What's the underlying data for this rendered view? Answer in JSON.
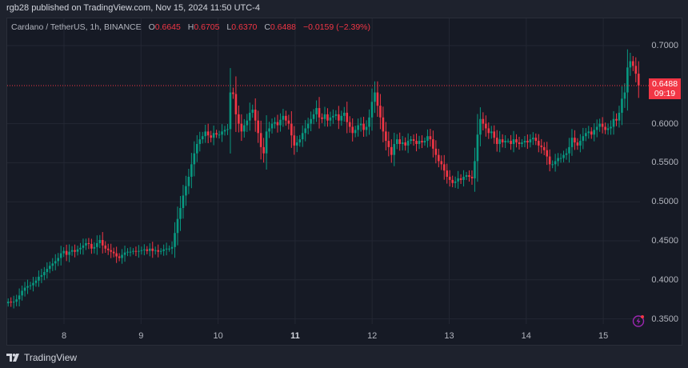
{
  "header": {
    "publisher": "rgb28 published on TradingView.com, Nov 15, 2024 11:50 UTC-4"
  },
  "legend": {
    "symbol": "Cardano / TetherUS, 1h, BINANCE",
    "open_label": "O",
    "open": "0.6645",
    "high_label": "H",
    "high": "0.6705",
    "low_label": "L",
    "low": "0.6370",
    "close_label": "C",
    "close": "0.6488",
    "change": "−0.0159 (−2.39%)"
  },
  "price_badge": {
    "price": "0.6488",
    "countdown": "09:19"
  },
  "footer": {
    "brand": "TradingView",
    "logo_icon": "tradingview-logo-icon"
  },
  "indicator_icon": "lightning-bolt-icon",
  "colors": {
    "up": "#089981",
    "down": "#f23645",
    "background": "#161a25",
    "frame": "#1e222d",
    "grid": "#232733",
    "accent_bolt": "#9c27b0"
  },
  "chart_data": {
    "type": "candlestick",
    "title": "Cardano / TetherUS, 1h, BINANCE",
    "xlabel": "",
    "ylabel": "",
    "x_ticks": [
      "8",
      "9",
      "10",
      "11",
      "12",
      "13",
      "14",
      "15"
    ],
    "bold_ticks": [
      "11"
    ],
    "y_ticks": [
      "0.7000",
      "0.6000",
      "0.5500",
      "0.5000",
      "0.4500",
      "0.4000",
      "0.3500"
    ],
    "ylim": [
      0.33,
      0.735
    ],
    "grid": true,
    "last_price": 0.6488,
    "interval": "1h",
    "date_range": "Nov 7 – Nov 15, 2024",
    "close_series_approx": [
      0.372,
      0.371,
      0.372,
      0.375,
      0.38,
      0.386,
      0.39,
      0.392,
      0.393,
      0.396,
      0.399,
      0.404,
      0.406,
      0.41,
      0.414,
      0.418,
      0.421,
      0.424,
      0.428,
      0.434,
      0.437,
      0.432,
      0.436,
      0.438,
      0.436,
      0.439,
      0.441,
      0.444,
      0.447,
      0.446,
      0.44,
      0.442,
      0.447,
      0.451,
      0.444,
      0.44,
      0.438,
      0.436,
      0.434,
      0.43,
      0.428,
      0.432,
      0.435,
      0.436,
      0.436,
      0.437,
      0.436,
      0.437,
      0.438,
      0.439,
      0.437,
      0.44,
      0.437,
      0.438,
      0.436,
      0.437,
      0.439,
      0.44,
      0.44,
      0.442,
      0.46,
      0.478,
      0.492,
      0.508,
      0.52,
      0.532,
      0.548,
      0.562,
      0.574,
      0.58,
      0.584,
      0.59,
      0.585,
      0.582,
      0.588,
      0.586,
      0.586,
      0.59,
      0.592,
      0.593,
      0.64,
      0.638,
      0.612,
      0.6,
      0.59,
      0.598,
      0.604,
      0.614,
      0.618,
      0.604,
      0.588,
      0.57,
      0.562,
      0.59,
      0.594,
      0.6,
      0.602,
      0.598,
      0.605,
      0.61,
      0.604,
      0.6,
      0.585,
      0.572,
      0.576,
      0.58,
      0.588,
      0.594,
      0.6,
      0.606,
      0.612,
      0.62,
      0.608,
      0.606,
      0.612,
      0.604,
      0.608,
      0.61,
      0.612,
      0.604,
      0.61,
      0.614,
      0.602,
      0.596,
      0.588,
      0.592,
      0.598,
      0.6,
      0.592,
      0.596,
      0.608,
      0.628,
      0.64,
      0.623,
      0.608,
      0.59,
      0.578,
      0.57,
      0.56,
      0.574,
      0.58,
      0.574,
      0.576,
      0.572,
      0.578,
      0.58,
      0.578,
      0.574,
      0.578,
      0.576,
      0.578,
      0.584,
      0.58,
      0.568,
      0.56,
      0.552,
      0.548,
      0.54,
      0.532,
      0.528,
      0.524,
      0.526,
      0.53,
      0.528,
      0.532,
      0.534,
      0.532,
      0.53,
      0.552,
      0.586,
      0.606,
      0.6,
      0.594,
      0.588,
      0.59,
      0.582,
      0.574,
      0.58,
      0.576,
      0.578,
      0.578,
      0.574,
      0.58,
      0.576,
      0.574,
      0.576,
      0.578,
      0.576,
      0.58,
      0.582,
      0.578,
      0.572,
      0.57,
      0.566,
      0.558,
      0.548,
      0.548,
      0.552,
      0.556,
      0.556,
      0.56,
      0.562,
      0.57,
      0.582,
      0.576,
      0.572,
      0.578,
      0.584,
      0.588,
      0.59,
      0.586,
      0.592,
      0.596,
      0.6,
      0.596,
      0.592,
      0.594,
      0.596,
      0.606,
      0.604,
      0.614,
      0.632,
      0.64,
      0.672,
      0.68,
      0.674,
      0.664,
      0.649
    ]
  }
}
